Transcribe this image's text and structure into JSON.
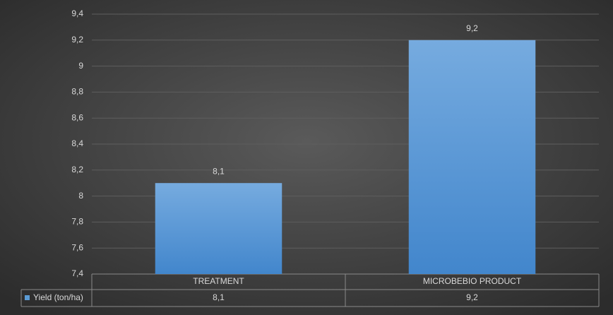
{
  "chart_data": {
    "type": "bar",
    "categories": [
      "TREATMENT",
      "MICROBEBIO PRODUCT"
    ],
    "series": [
      {
        "name": "Yield (ton/ha)",
        "color": "#5b9bd5",
        "values": [
          8.1,
          9.2
        ],
        "value_labels": [
          "8,1",
          "9,2"
        ]
      }
    ],
    "ylim": [
      7.4,
      9.4
    ],
    "yticks": [
      {
        "value": 7.4,
        "label": "7,4"
      },
      {
        "value": 7.6,
        "label": "7,6"
      },
      {
        "value": 7.8,
        "label": "7,8"
      },
      8,
      {
        "value": 8.2,
        "label": "8,2"
      },
      {
        "value": 8.4,
        "label": "8,4"
      },
      {
        "value": 8.6,
        "label": "8,6"
      },
      {
        "value": 8.8,
        "label": "8,8"
      },
      9,
      {
        "value": 9.2,
        "label": "9,2"
      },
      {
        "value": 9.4,
        "label": "9,4"
      }
    ],
    "grid": true,
    "data_table": true
  }
}
